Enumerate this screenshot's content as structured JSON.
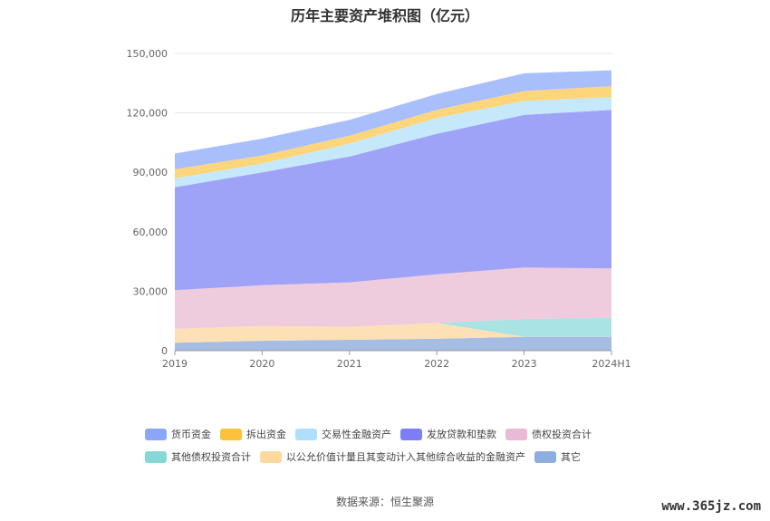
{
  "chart_data": {
    "type": "area",
    "title": "历年主要资产堆积图（亿元）",
    "categories": [
      "2019",
      "2020",
      "2021",
      "2022",
      "2023",
      "2024H1"
    ],
    "ylim": [
      0,
      150000
    ],
    "yticks": [
      0,
      30000,
      60000,
      90000,
      120000,
      150000
    ],
    "ytick_labels": [
      "0",
      "30,000",
      "60,000",
      "90,000",
      "120,000",
      "150,000"
    ],
    "stacked": true,
    "grid": true,
    "legend_position": "bottom",
    "series": [
      {
        "name": "其它",
        "color": "#a6bde3",
        "values": [
          4000,
          5000,
          5500,
          6000,
          7000,
          7000
        ]
      },
      {
        "name": "以公允价值计量且其变动计入其他综合收益的金融资产",
        "color": "#fde0b5",
        "values": [
          7000,
          7500,
          6500,
          8000,
          0,
          0
        ]
      },
      {
        "name": "其他债权投资合计",
        "color": "#a9e3e3",
        "values": [
          0,
          0,
          0,
          0,
          9000,
          9500
        ]
      },
      {
        "name": "债权投资合计",
        "color": "#eeccdd",
        "values": [
          19500,
          20500,
          22500,
          24500,
          26000,
          25000
        ]
      },
      {
        "name": "发放贷款和垫款",
        "color": "#9fa3f8",
        "values": [
          52000,
          57000,
          63500,
          71000,
          77000,
          80000
        ]
      },
      {
        "name": "交易性金融资产",
        "color": "#c5e9fb",
        "values": [
          4500,
          4500,
          6500,
          8000,
          7000,
          6500
        ]
      },
      {
        "name": "拆出资金",
        "color": "#fdd57b",
        "values": [
          4500,
          4000,
          4000,
          4000,
          5000,
          5500
        ]
      },
      {
        "name": "货币资金",
        "color": "#a9bffc",
        "values": [
          8000,
          8500,
          8000,
          8000,
          9000,
          8000
        ]
      }
    ]
  },
  "legend": [
    {
      "name": "货币资金",
      "color": "#8aa6f8"
    },
    {
      "name": "拆出资金",
      "color": "#fdc23c"
    },
    {
      "name": "交易性金融资产",
      "color": "#aee0fb"
    },
    {
      "name": "发放贷款和垫款",
      "color": "#7b7ff3"
    },
    {
      "name": "债权投资合计",
      "color": "#e9bad8"
    },
    {
      "name": "其他债权投资合计",
      "color": "#88d7d7"
    },
    {
      "name": "以公允价值计量且其变动计入其他综合收益的金融资产",
      "color": "#fdd9a0"
    },
    {
      "name": "其它",
      "color": "#8eaee0"
    }
  ],
  "source": "数据来源：恒生聚源",
  "watermark": "www.365jz.com"
}
